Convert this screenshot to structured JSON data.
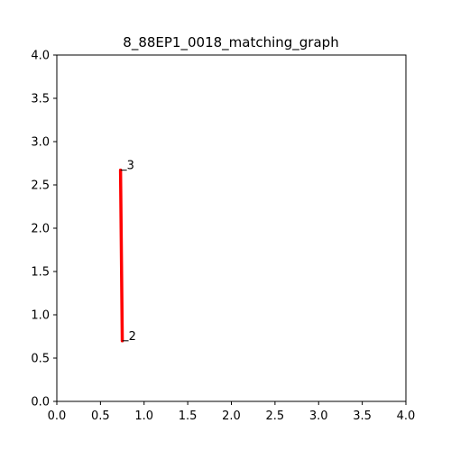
{
  "chart_data": {
    "type": "line",
    "title": "8_88EP1_0018_matching_graph",
    "xlabel": "",
    "ylabel": "",
    "xlim": [
      0,
      4
    ],
    "ylim": [
      0,
      4
    ],
    "xticks": [
      "0.0",
      "0.5",
      "1.0",
      "1.5",
      "2.0",
      "2.5",
      "3.0",
      "3.5",
      "4.0"
    ],
    "yticks": [
      "0.0",
      "0.5",
      "1.0",
      "1.5",
      "2.0",
      "2.5",
      "3.0",
      "3.5",
      "4.0"
    ],
    "grid": false,
    "nodes": [
      {
        "label": "3",
        "x": 0.73,
        "y": 2.67
      },
      {
        "label": "2",
        "x": 0.75,
        "y": 0.7
      }
    ],
    "edges": [
      {
        "from": "3",
        "to": "2",
        "color": "#ff0000"
      }
    ]
  }
}
